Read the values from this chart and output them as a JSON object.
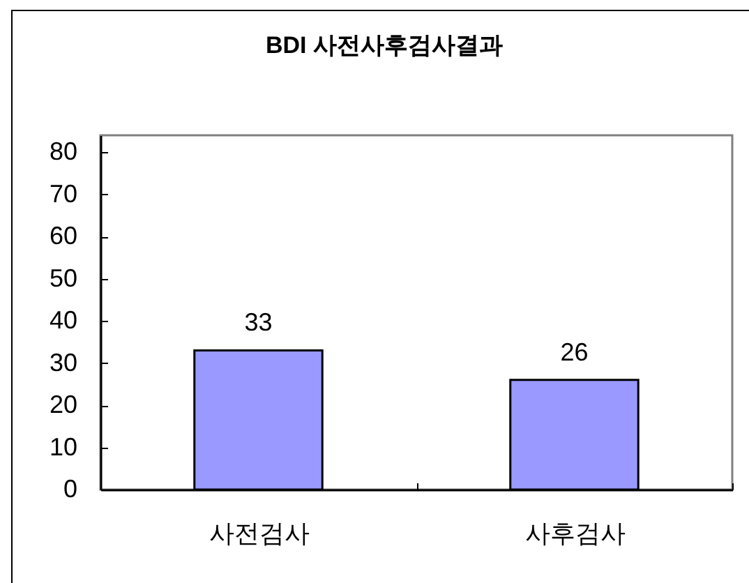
{
  "chart_data": {
    "type": "bar",
    "title": "BDI 사전사후검사결과",
    "categories": [
      "사전검사",
      "사후검사"
    ],
    "values": [
      33,
      26
    ],
    "color": "#9999ff",
    "ylim": [
      0,
      84
    ],
    "yticks": [
      0,
      10,
      20,
      30,
      40,
      50,
      60,
      70,
      80
    ],
    "data_labels": true
  }
}
